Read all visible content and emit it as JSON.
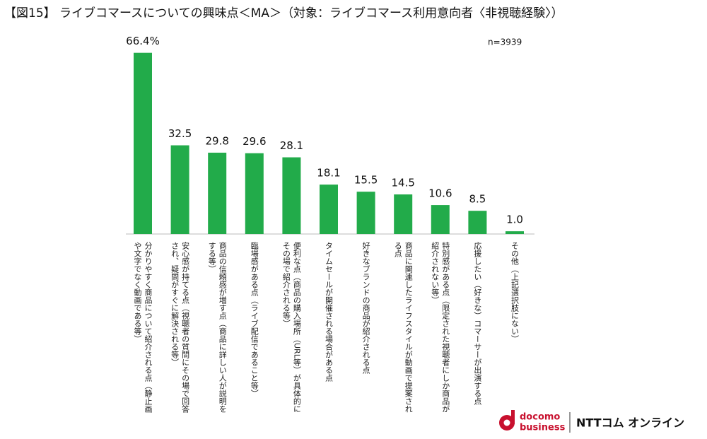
{
  "chart_data": {
    "type": "bar",
    "title": "【図15】 ライブコマースについての興味点＜MA＞（対象：ライブコマース利用意向者〈非視聴経験〉）",
    "note": "n=3939",
    "categories": [
      "分かりやすく商品について紹介される点（静止画や文字でなく動画である等）",
      "安心感が持てる点（視聴者の質問にその場で回答され、疑問がすぐに解決される等）",
      "商品の信頼感が増す点（商品に詳しい人が説明をする等）",
      "臨場感がある点（ライブ配信であること等）",
      "便利な点（商品の購入場所（URL等）が具体的にその場で紹介される等）",
      "タイムセールが開催される場合がある点",
      "好きなブランドの商品が紹介される点",
      "商品に関連したライフスタイルが動画で提案される点",
      "特別感がある点（限定された視聴者にしか商品が紹介されない等）",
      "応援したい（好きな）コマーサーが出演する点",
      "その他（上記選択肢にない）"
    ],
    "values": [
      66.4,
      32.5,
      29.8,
      29.6,
      28.1,
      18.1,
      15.5,
      14.5,
      10.6,
      8.5,
      1.0
    ],
    "value_labels": [
      "66.4%",
      "32.5",
      "29.8",
      "29.6",
      "28.1",
      "18.1",
      "15.5",
      "14.5",
      "10.6",
      "8.5",
      "1.0"
    ],
    "color": "#22ab4a"
  },
  "footer": {
    "brand_top": "docomo",
    "brand_bottom": "business",
    "service": "NTTコム オンライン"
  }
}
